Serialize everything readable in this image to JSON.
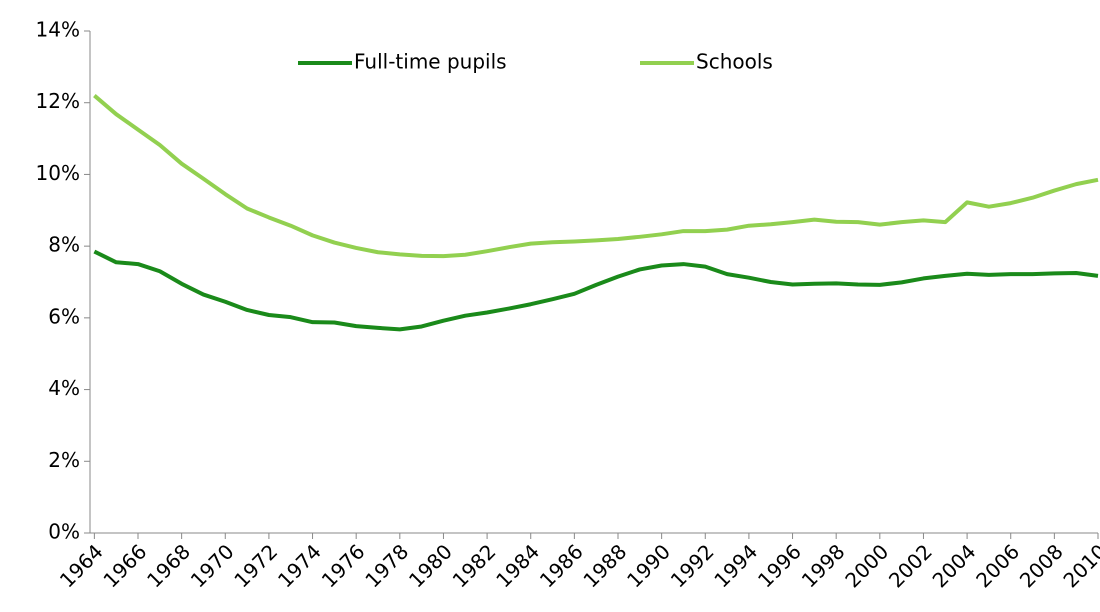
{
  "chart_data": {
    "type": "line",
    "x": [
      1964,
      1965,
      1966,
      1967,
      1968,
      1969,
      1970,
      1971,
      1972,
      1973,
      1974,
      1975,
      1976,
      1977,
      1978,
      1979,
      1980,
      1981,
      1982,
      1983,
      1984,
      1985,
      1986,
      1987,
      1988,
      1989,
      1990,
      1991,
      1992,
      1993,
      1994,
      1995,
      1996,
      1997,
      1998,
      1999,
      2000,
      2001,
      2002,
      2003,
      2004,
      2005,
      2006,
      2007,
      2008,
      2009,
      2010
    ],
    "series": [
      {
        "name": "Full-time pupils",
        "color": "#1a8a1a",
        "values": [
          7.85,
          7.55,
          7.5,
          7.3,
          6.95,
          6.65,
          6.45,
          6.22,
          6.08,
          6.02,
          5.88,
          5.87,
          5.77,
          5.72,
          5.68,
          5.76,
          5.92,
          6.06,
          6.15,
          6.26,
          6.38,
          6.52,
          6.67,
          6.92,
          7.15,
          7.35,
          7.46,
          7.5,
          7.43,
          7.22,
          7.12,
          7.0,
          6.93,
          6.95,
          6.96,
          6.93,
          6.92,
          6.99,
          7.1,
          7.17,
          7.23,
          7.2,
          7.22,
          7.22,
          7.24,
          7.25,
          7.17
        ]
      },
      {
        "name": "Schools",
        "color": "#92d050",
        "values": [
          12.2,
          11.68,
          11.25,
          10.82,
          10.3,
          9.88,
          9.45,
          9.05,
          8.8,
          8.57,
          8.3,
          8.1,
          7.95,
          7.83,
          7.77,
          7.73,
          7.72,
          7.76,
          7.86,
          7.97,
          8.07,
          8.11,
          8.13,
          8.16,
          8.2,
          8.26,
          8.33,
          8.42,
          8.42,
          8.46,
          8.57,
          8.61,
          8.67,
          8.74,
          8.68,
          8.67,
          8.6,
          8.67,
          8.72,
          8.67,
          9.22,
          9.1,
          9.2,
          9.35,
          9.55,
          9.73,
          9.85
        ]
      }
    ],
    "xlim": [
      1963.8,
      2010
    ],
    "xticks": [
      1964,
      1966,
      1968,
      1970,
      1972,
      1974,
      1976,
      1978,
      1980,
      1982,
      1984,
      1986,
      1988,
      1990,
      1992,
      1994,
      1996,
      1998,
      2000,
      2002,
      2004,
      2006,
      2008,
      2010
    ],
    "ylim": [
      0,
      14
    ],
    "yticks": [
      {
        "value": 0,
        "label": "0%"
      },
      {
        "value": 2,
        "label": "2%"
      },
      {
        "value": 4,
        "label": "4%"
      },
      {
        "value": 6,
        "label": "6%"
      },
      {
        "value": 8,
        "label": "8%"
      },
      {
        "value": 10,
        "label": "10%"
      },
      {
        "value": 12,
        "label": "12%"
      },
      {
        "value": 14,
        "label": "14%"
      }
    ],
    "grid": false,
    "legend": "top"
  }
}
